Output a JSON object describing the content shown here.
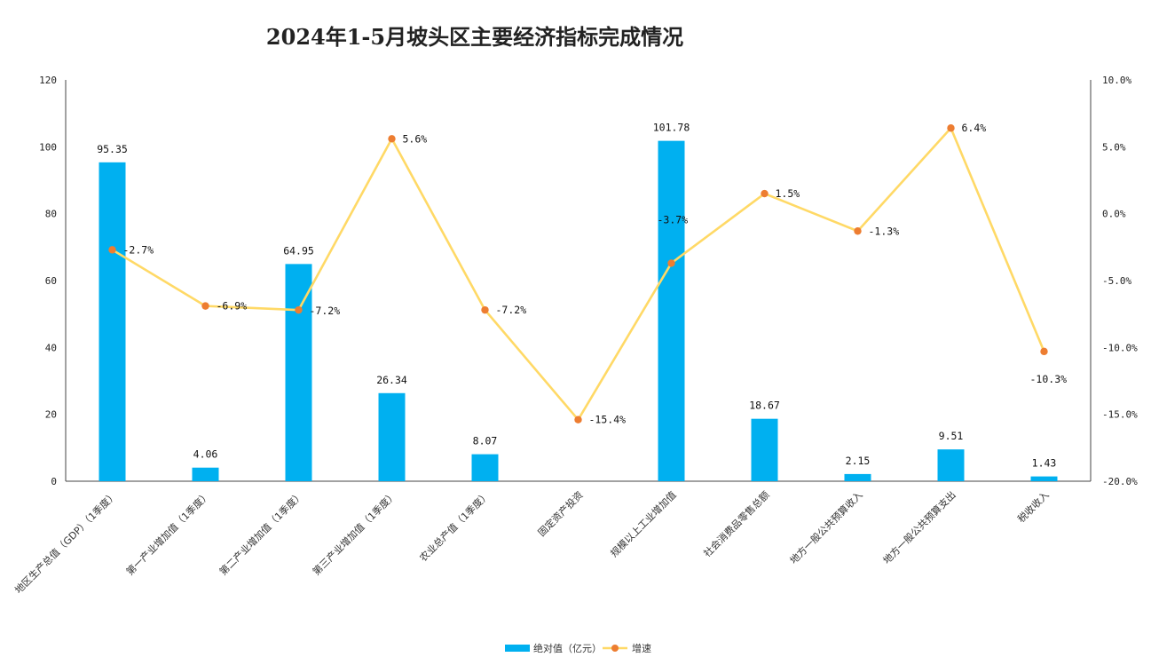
{
  "chart_data": {
    "type": "bar+line",
    "title": "2024年1-5月坡头区主要经济指标完成情况",
    "categories": [
      "地区生产总值（GDP）（1季度）",
      "第一产业增加值（1季度）",
      "第二产业增加值（1季度）",
      "第三产业增加值（1季度）",
      "农业总产值（1季度）",
      "固定资产投资",
      "规模以上工业增加值",
      "社会消费品零售总额",
      "地方一般公共预算收入",
      "地方一般公共预算支出",
      "税收收入"
    ],
    "series": [
      {
        "name": "绝对值（亿元）",
        "type": "bar",
        "axis": "left",
        "color": "#00b0f0",
        "values": [
          95.35,
          4.06,
          64.95,
          26.34,
          8.07,
          null,
          101.78,
          18.67,
          2.15,
          9.51,
          1.43
        ],
        "labels": [
          "95.35",
          "4.06",
          "64.95",
          "26.34",
          "8.07",
          "",
          "101.78",
          "18.67",
          "2.15",
          "9.51",
          "1.43"
        ]
      },
      {
        "name": "增速",
        "type": "line",
        "axis": "right",
        "line_color": "#ffd966",
        "marker_color": "#ed7d31",
        "values": [
          -2.7,
          -6.9,
          -7.2,
          5.6,
          -7.2,
          -15.4,
          -3.7,
          1.5,
          -1.3,
          6.4,
          -10.3
        ],
        "labels": [
          "-2.7%",
          "-6.9%",
          "-7.2%",
          "5.6%",
          "-7.2%",
          "-15.4%",
          "-3.7%",
          "1.5%",
          "-1.3%",
          "6.4%",
          "-10.3%"
        ]
      }
    ],
    "y_left": {
      "min": 0,
      "max": 120,
      "ticks": [
        "0",
        "20",
        "40",
        "60",
        "80",
        "100",
        "120"
      ]
    },
    "y_right": {
      "min": -20,
      "max": 10,
      "ticks": [
        "-20.0%",
        "-15.0%",
        "-10.0%",
        "-5.0%",
        "0.0%",
        "5.0%",
        "10.0%"
      ]
    },
    "grid": false,
    "legend_position": "bottom"
  }
}
